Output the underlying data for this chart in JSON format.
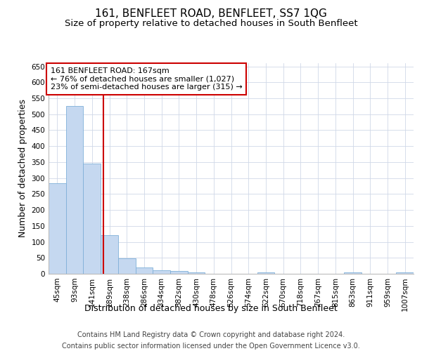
{
  "title": "161, BENFLEET ROAD, BENFLEET, SS7 1QG",
  "subtitle": "Size of property relative to detached houses in South Benfleet",
  "xlabel": "Distribution of detached houses by size in South Benfleet",
  "ylabel": "Number of detached properties",
  "bin_labels": [
    "45sqm",
    "93sqm",
    "141sqm",
    "189sqm",
    "238sqm",
    "286sqm",
    "334sqm",
    "382sqm",
    "430sqm",
    "478sqm",
    "526sqm",
    "574sqm",
    "622sqm",
    "670sqm",
    "718sqm",
    "767sqm",
    "815sqm",
    "863sqm",
    "911sqm",
    "959sqm",
    "1007sqm"
  ],
  "bar_heights": [
    283,
    525,
    345,
    120,
    48,
    20,
    10,
    8,
    5,
    0,
    0,
    0,
    5,
    0,
    0,
    0,
    0,
    5,
    0,
    0,
    5
  ],
  "bar_color": "#c5d8f0",
  "bar_edge_color": "#7fb0d8",
  "vline_x_index": 2.67,
  "vline_color": "#cc0000",
  "annotation_text": "161 BENFLEET ROAD: 167sqm\n← 76% of detached houses are smaller (1,027)\n23% of semi-detached houses are larger (315) →",
  "annotation_box_color": "#ffffff",
  "annotation_box_edge": "#cc0000",
  "ylim": [
    0,
    660
  ],
  "yticks": [
    0,
    50,
    100,
    150,
    200,
    250,
    300,
    350,
    400,
    450,
    500,
    550,
    600,
    650
  ],
  "footer_line1": "Contains HM Land Registry data © Crown copyright and database right 2024.",
  "footer_line2": "Contains public sector information licensed under the Open Government Licence v3.0.",
  "bg_color": "#ffffff",
  "grid_color": "#d0d8e8",
  "title_fontsize": 11,
  "subtitle_fontsize": 9.5,
  "label_fontsize": 9,
  "tick_fontsize": 7.5,
  "annotation_fontsize": 8,
  "footer_fontsize": 7
}
